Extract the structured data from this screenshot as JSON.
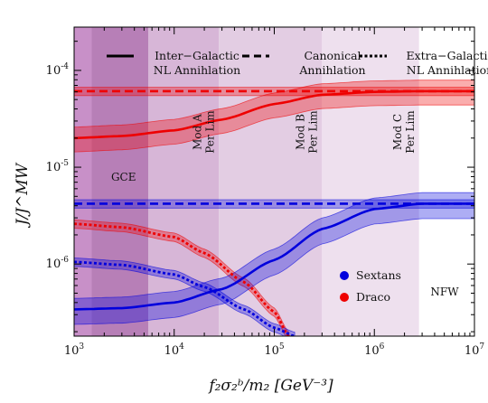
{
  "chart_data": {
    "type": "line",
    "xscale": "log",
    "yscale": "log",
    "xlim": [
      1000,
      10000000
    ],
    "ylim": [
      1.8e-07,
      0.00028
    ],
    "xlabel": "f₂σ₂ᵇ/m₂ [GeV⁻³]",
    "ylabel": "J/J^MW",
    "x_ticks": [
      {
        "value": 1000,
        "base": "10",
        "exp": "3"
      },
      {
        "value": 10000,
        "base": "10",
        "exp": "4"
      },
      {
        "value": 100000,
        "base": "10",
        "exp": "5"
      },
      {
        "value": 1000000,
        "base": "10",
        "exp": "6"
      },
      {
        "value": 10000000,
        "base": "10",
        "exp": "7"
      }
    ],
    "y_ticks": [
      {
        "value": 1e-06,
        "base": "10",
        "exp": "-6"
      },
      {
        "value": 1e-05,
        "base": "10",
        "exp": "-5"
      },
      {
        "value": 0.0001,
        "base": "10",
        "exp": "-4"
      }
    ],
    "regions": [
      {
        "x0": 1000,
        "x1": 1500,
        "color": "#c890c8"
      },
      {
        "x0": 1500,
        "x1": 5500,
        "color": "#b77fb7",
        "label": "GCE"
      },
      {
        "x0": 5500,
        "x1": 28000,
        "color": "#d7b6d7",
        "label": "Mod A\nPer Lim"
      },
      {
        "x0": 28000,
        "x1": 300000,
        "color": "#e3cde3",
        "label": "Mod B\nPer Lim"
      },
      {
        "x0": 300000,
        "x1": 2800000,
        "color": "#eee0ee",
        "label": "Mod C\nPer Lim"
      },
      {
        "x0": 2800000,
        "x1": 10000000,
        "color": "#ffffff",
        "label": "NFW"
      }
    ],
    "colors": {
      "draco": "#ee0000",
      "sextans": "#0000dd"
    },
    "series": [
      {
        "name": "Draco",
        "style": "solid",
        "x": [
          1000,
          3000,
          10000,
          30000,
          100000,
          300000,
          1000000,
          3000000,
          10000000
        ],
        "y": [
          2e-05,
          2.1e-05,
          2.4e-05,
          3.1e-05,
          4.5e-05,
          5.6e-05,
          6e-05,
          6.1e-05,
          6.1e-05
        ],
        "band_lower_factor": 0.72,
        "band_upper_factor": 1.3
      },
      {
        "name": "Draco",
        "style": "dashed",
        "x": [
          1000,
          10000000
        ],
        "y": [
          6.1e-05,
          6.1e-05
        ],
        "band_lower_factor": 0.9,
        "band_upper_factor": 1.1
      },
      {
        "name": "Draco",
        "style": "dotted",
        "x": [
          1000,
          3000,
          10000,
          20000,
          50000,
          100000,
          140000
        ],
        "y": [
          2.6e-06,
          2.4e-06,
          1.9e-06,
          1.3e-06,
          6.5e-07,
          3.2e-07,
          1.8e-07
        ],
        "band_lower_factor": 0.9,
        "band_upper_factor": 1.1
      },
      {
        "name": "Sextans",
        "style": "solid",
        "x": [
          1000,
          3000,
          10000,
          30000,
          100000,
          300000,
          1000000,
          3000000,
          10000000
        ],
        "y": [
          3.4e-07,
          3.5e-07,
          4e-07,
          5.5e-07,
          1.1e-06,
          2.3e-06,
          3.7e-06,
          4.2e-06,
          4.2e-06
        ],
        "band_lower_factor": 0.7,
        "band_upper_factor": 1.3
      },
      {
        "name": "Sextans",
        "style": "dashed",
        "x": [
          1000,
          10000000
        ],
        "y": [
          4.2e-06,
          4.2e-06
        ],
        "band_lower_factor": 0.9,
        "band_upper_factor": 1.1
      },
      {
        "name": "Sextans",
        "style": "dotted",
        "x": [
          1000,
          3000,
          10000,
          20000,
          50000,
          100000,
          160000
        ],
        "y": [
          1.05e-06,
          9.8e-07,
          7.8e-07,
          5.8e-07,
          3.4e-07,
          2.2e-07,
          1.8e-07
        ],
        "band_lower_factor": 0.9,
        "band_upper_factor": 1.1
      }
    ],
    "legend": {
      "line_styles": [
        {
          "style": "solid",
          "line1": "Inter−Galactic",
          "line2": "NL Annihlation"
        },
        {
          "style": "dashed",
          "line1": "Canonical",
          "line2": "Annihlation"
        },
        {
          "style": "dotted",
          "line1": "Extra−Galactic",
          "line2": "NL Annihlation"
        }
      ],
      "markers": [
        {
          "name": "Sextans",
          "color": "#0000dd"
        },
        {
          "name": "Draco",
          "color": "#ee0000"
        }
      ]
    }
  }
}
